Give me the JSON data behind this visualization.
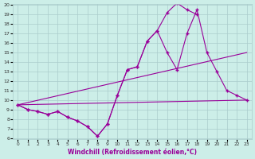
{
  "xlabel": "Windchill (Refroidissement éolien,°C)",
  "background_color": "#cceee8",
  "grid_color": "#aacccc",
  "line_color": "#990099",
  "line1_x": [
    0,
    1,
    2,
    3,
    4,
    5,
    6,
    7,
    8,
    9,
    10,
    11,
    12,
    13,
    14,
    15,
    16,
    17,
    18
  ],
  "line1_y": [
    9.5,
    9.0,
    8.8,
    8.5,
    8.8,
    8.2,
    7.8,
    7.2,
    6.2,
    7.5,
    10.5,
    13.2,
    13.5,
    16.2,
    17.3,
    19.2,
    20.2,
    19.5,
    19.0
  ],
  "line2_x": [
    0,
    1,
    2,
    3,
    4,
    5,
    6,
    7,
    8,
    9,
    10,
    11,
    12,
    13,
    14,
    15,
    16,
    17,
    18,
    19,
    20,
    21,
    22,
    23
  ],
  "line2_y": [
    9.5,
    9.0,
    8.8,
    8.5,
    8.8,
    8.2,
    7.8,
    7.2,
    6.2,
    7.5,
    10.5,
    13.2,
    13.5,
    16.2,
    17.3,
    15.0,
    13.2,
    17.0,
    19.5,
    15.0,
    13.0,
    11.0,
    10.5,
    10.0
  ],
  "line3_x": [
    0,
    23
  ],
  "line3_y": [
    9.5,
    15.0
  ],
  "line4_x": [
    0,
    23
  ],
  "line4_y": [
    9.5,
    10.0
  ],
  "ylim": [
    6,
    20
  ],
  "xlim": [
    -0.5,
    23.5
  ],
  "yticks": [
    6,
    7,
    8,
    9,
    10,
    11,
    12,
    13,
    14,
    15,
    16,
    17,
    18,
    19,
    20
  ],
  "xticks": [
    0,
    1,
    2,
    3,
    4,
    5,
    6,
    7,
    8,
    9,
    10,
    11,
    12,
    13,
    14,
    15,
    16,
    17,
    18,
    19,
    20,
    21,
    22,
    23
  ]
}
